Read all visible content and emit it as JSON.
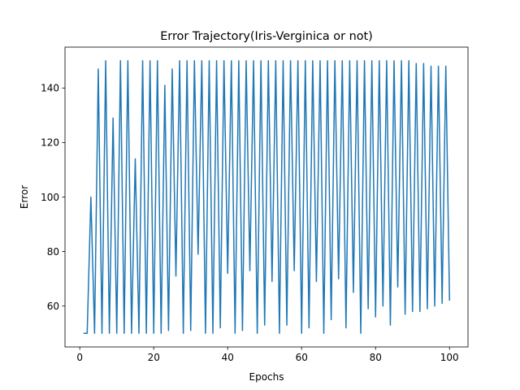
{
  "chart_data": {
    "type": "line",
    "title": "Error Trajectory(Iris-Verginica or not)",
    "xlabel": "Epochs",
    "ylabel": "Error",
    "xlim": [
      -4,
      105
    ],
    "ylim": [
      45,
      155
    ],
    "xticks": [
      0,
      20,
      40,
      60,
      80,
      100
    ],
    "yticks": [
      60,
      80,
      100,
      120,
      140
    ],
    "grid": false,
    "line_color": "#1f77b4",
    "series": [
      {
        "x": [
          1,
          2,
          3,
          4,
          5,
          6,
          7,
          8,
          9,
          10,
          11,
          12,
          13,
          14,
          15,
          16,
          17,
          18,
          19,
          20,
          21,
          22,
          23,
          24,
          25,
          26,
          27,
          28,
          29,
          30,
          31,
          32,
          33,
          34,
          35,
          36,
          37,
          38,
          39,
          40,
          41,
          42,
          43,
          44,
          45,
          46,
          47,
          48,
          49,
          50,
          51,
          52,
          53,
          54,
          55,
          56,
          57,
          58,
          59,
          60,
          61,
          62,
          63,
          64,
          65,
          66,
          67,
          68,
          69,
          70,
          71,
          72,
          73,
          74,
          75,
          76,
          77,
          78,
          79,
          80,
          81,
          82,
          83,
          84,
          85,
          86,
          87,
          88,
          89,
          90,
          91,
          92,
          93,
          94,
          95,
          96,
          97,
          98,
          99,
          100
        ],
        "values": [
          50,
          50,
          100,
          50,
          147,
          50,
          150,
          50,
          129,
          50,
          150,
          50,
          150,
          50,
          114,
          50,
          150,
          50,
          150,
          50,
          150,
          50,
          141,
          51,
          147,
          71,
          150,
          50,
          150,
          51,
          150,
          79,
          150,
          50,
          150,
          50,
          150,
          52,
          150,
          72,
          150,
          50,
          150,
          51,
          150,
          73,
          150,
          50,
          150,
          53,
          150,
          69,
          150,
          50,
          150,
          53,
          150,
          73,
          150,
          50,
          150,
          52,
          150,
          69,
          150,
          50,
          150,
          55,
          150,
          70,
          150,
          52,
          150,
          65,
          150,
          50,
          150,
          59,
          150,
          56,
          150,
          60,
          150,
          53,
          150,
          67,
          150,
          57,
          150,
          58,
          149,
          58,
          149,
          59,
          148,
          60,
          148,
          61,
          148,
          62
        ]
      }
    ]
  }
}
